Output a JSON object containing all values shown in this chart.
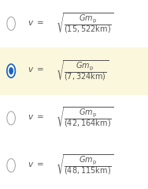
{
  "options": [
    {
      "radius": "15{,}522\\ \\text{km}",
      "radius_display": "(15,522 km)",
      "selected": false
    },
    {
      "radius": "7{,}324\\ \\text{km}",
      "radius_display": "(7,324 km)",
      "selected": true
    },
    {
      "radius": "42{,}164\\ \\text{km}",
      "radius_display": "(42,164 km)",
      "selected": false
    },
    {
      "radius": "48{,}115\\ \\text{km}",
      "radius_display": "(48,115 km)",
      "selected": false
    }
  ],
  "highlight_color": "#faf7dc",
  "radio_unsel_edge": "#aaaaaa",
  "radio_unsel_face": "#ffffff",
  "radio_sel_fill": "#1565c0",
  "radio_sel_edge": "#1565c0",
  "text_color": "#555555",
  "bg_color": "#ffffff",
  "fig_width": 1.88,
  "fig_height": 2.39,
  "dpi": 100
}
